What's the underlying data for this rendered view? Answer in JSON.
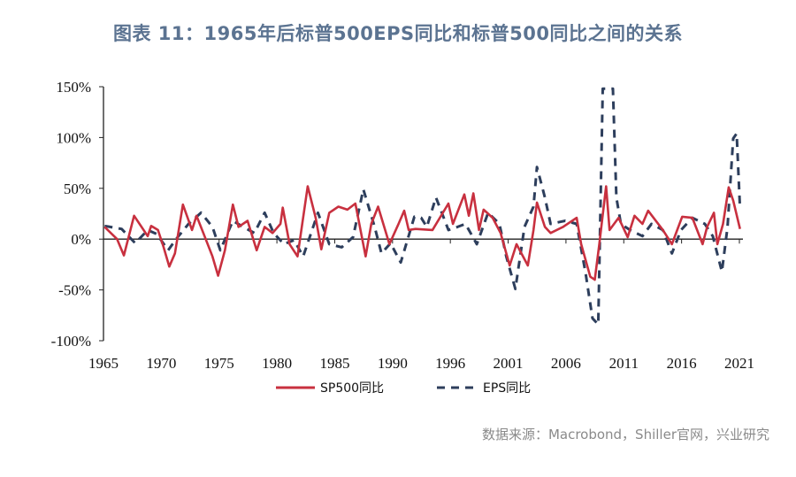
{
  "title": "图表 11：1965年后标普500EPS同比和标普500同比之间的关系",
  "source": "数据来源：Macrobond，Shiller官网，兴业研究",
  "chart_data": {
    "type": "line",
    "title": "图表 11：1965年后标普500EPS同比和标普500同比之间的关系",
    "xlabel": "",
    "ylabel": "",
    "ylim": [
      -100,
      150
    ],
    "xlim": [
      1965,
      2021.2
    ],
    "y_ticks": [
      "150%",
      "100%",
      "50%",
      "0%",
      "-50%",
      "-100%"
    ],
    "y_tick_values": [
      150,
      100,
      50,
      0,
      -50,
      -100
    ],
    "x_ticks": [
      "1965",
      "1970",
      "1975",
      "1980",
      "1985",
      "1990",
      "1996",
      "2001",
      "2006",
      "2011",
      "2016",
      "2021"
    ],
    "grid": false,
    "legend_position": "bottom",
    "series": [
      {
        "name": "SP500同比",
        "color": "#c8303f",
        "style": "solid",
        "x": [
          1965.1,
          1966.2,
          1966.8,
          1967.7,
          1968.9,
          1969.2,
          1969.8,
          1970.3,
          1970.8,
          1971.3,
          1972.0,
          1972.8,
          1973.2,
          1973.8,
          1974.6,
          1975.1,
          1975.7,
          1976.4,
          1976.9,
          1977.7,
          1978.5,
          1979.2,
          1979.9,
          1980.6,
          1980.8,
          1981.4,
          1982.1,
          1983.0,
          1983.7,
          1984.2,
          1984.9,
          1985.7,
          1986.5,
          1987.2,
          1988.1,
          1988.6,
          1989.2,
          1990.2,
          1991.0,
          1991.5,
          1991.9,
          1992.5,
          1994.0,
          1995.4,
          1995.8,
          1996.8,
          1997.2,
          1997.6,
          1998.1,
          1998.5,
          1999.3,
          2000.0,
          2000.8,
          2001.4,
          2002.4,
          2002.9,
          2003.2,
          2003.9,
          2004.4,
          2005.5,
          2006.7,
          2007.1,
          2007.9,
          2008.3,
          2008.7,
          2009.3,
          2009.6,
          2010.4,
          2011.2,
          2011.8,
          2012.5,
          2013.0,
          2014.3,
          2015.1,
          2016.0,
          2016.9,
          2017.8,
          2018.2,
          2018.8,
          2019.1,
          2019.6,
          2020.1,
          2020.5,
          2021.1
        ],
        "values": [
          12,
          0,
          -16,
          23,
          3,
          13,
          9,
          -8,
          -27,
          -14,
          34,
          9,
          23,
          6,
          -17,
          -36,
          -11,
          34,
          12,
          18,
          -11,
          12,
          6,
          15,
          31,
          -5,
          -17,
          52,
          21,
          -10,
          26,
          32,
          29,
          35,
          -17,
          15,
          32,
          -5,
          15,
          28,
          9,
          10,
          9,
          35,
          15,
          44,
          23,
          45,
          9,
          29,
          21,
          6,
          -26,
          -5,
          -26,
          9,
          36,
          12,
          6,
          12,
          21,
          -5,
          -37,
          -40,
          -5,
          52,
          9,
          21,
          2,
          23,
          15,
          28,
          9,
          -5,
          22,
          21,
          -5,
          12,
          26,
          -5,
          15,
          51,
          38,
          10
        ]
      },
      {
        "name": "EPS同比",
        "color": "#2d3e5c",
        "style": "dashed",
        "x": [
          1965.1,
          1966.6,
          1967.8,
          1968.9,
          1969.7,
          1970.7,
          1971.4,
          1972.5,
          1973.6,
          1974.6,
          1975.3,
          1976.4,
          1977.3,
          1978.3,
          1979.2,
          1980.0,
          1980.9,
          1981.8,
          1982.6,
          1983.9,
          1984.9,
          1986.0,
          1987.0,
          1987.9,
          1988.9,
          1989.5,
          1990.3,
          1991.2,
          1992.4,
          1993.0,
          1993.5,
          1994.3,
          1995.4,
          1996.2,
          1996.9,
          1997.9,
          1998.9,
          1999.9,
          2000.5,
          2001.3,
          2002.1,
          2002.9,
          2003.2,
          2003.9,
          2004.4,
          2005.7,
          2006.7,
          2007.5,
          2008.1,
          2008.6,
          2009.0,
          2009.9,
          2010.2,
          2010.6,
          2011.4,
          2012.5,
          2013.3,
          2014.3,
          2015.1,
          2015.9,
          2016.9,
          2018.0,
          2018.7,
          2019.5,
          2020.0,
          2020.5,
          2020.8,
          2021.1
        ],
        "values": [
          13,
          10,
          -4,
          9,
          5,
          -11,
          0,
          15,
          26,
          12,
          -11,
          18,
          12,
          6,
          26,
          6,
          -5,
          -1,
          -17,
          26,
          -5,
          -8,
          2,
          49,
          12,
          -14,
          -4,
          -23,
          22,
          21,
          12,
          41,
          9,
          12,
          15,
          -5,
          26,
          15,
          -17,
          -49,
          12,
          32,
          71,
          41,
          15,
          18,
          15,
          -34,
          -78,
          -84,
          148,
          148,
          41,
          15,
          9,
          3,
          15,
          9,
          -14,
          9,
          21,
          15,
          3,
          -32,
          12,
          99,
          104,
          30
        ]
      }
    ]
  }
}
